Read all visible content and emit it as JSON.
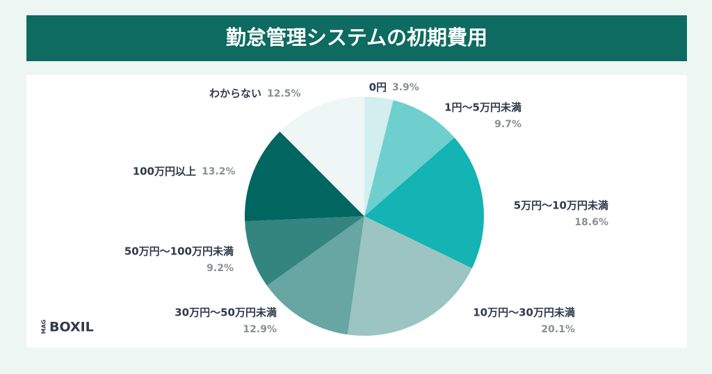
{
  "chart_data": {
    "type": "pie",
    "title": "勤怠管理システムの初期費用",
    "categories": [
      "0円",
      "1円〜5万円未満",
      "5万円〜10万円未満",
      "10万円〜30万円未満",
      "30万円〜50万円未満",
      "50万円〜100万円未満",
      "100万円以上",
      "わからない"
    ],
    "values": [
      3.9,
      9.7,
      18.6,
      20.1,
      12.9,
      9.2,
      13.2,
      12.5
    ],
    "value_labels": [
      "3.9%",
      "9.7%",
      "18.6%",
      "20.1%",
      "12.9%",
      "9.2%",
      "13.2%",
      "12.5%"
    ],
    "colors": [
      "#d3eeee",
      "#6fcfcf",
      "#13b4b3",
      "#9bc4c3",
      "#67a6a2",
      "#348480",
      "#00665f",
      "#eef6f6"
    ]
  },
  "brand": {
    "mag": "MAG",
    "name": "BOXIL"
  }
}
